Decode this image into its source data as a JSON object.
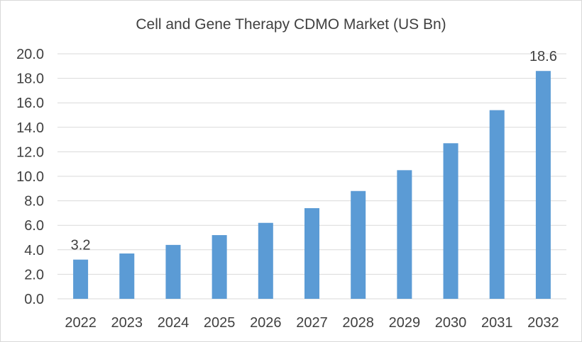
{
  "chart_data": {
    "type": "bar",
    "title": "Cell and Gene Therapy CDMO Market (US Bn)",
    "xlabel": "",
    "ylabel": "",
    "categories": [
      "2022",
      "2023",
      "2024",
      "2025",
      "2026",
      "2027",
      "2028",
      "2029",
      "2030",
      "2031",
      "2032"
    ],
    "values": [
      3.2,
      3.7,
      4.4,
      5.2,
      6.2,
      7.4,
      8.8,
      10.5,
      12.7,
      15.4,
      18.6
    ],
    "ylim": [
      0,
      20
    ],
    "yticks": [
      "0.0",
      "2.0",
      "4.0",
      "6.0",
      "8.0",
      "10.0",
      "12.0",
      "14.0",
      "16.0",
      "18.0",
      "20.0"
    ],
    "data_labels": [
      {
        "category": "2022",
        "text": "3.2"
      },
      {
        "category": "2032",
        "text": "18.6"
      }
    ],
    "grid": true,
    "legend": "none",
    "colors": {
      "bar": "#5b9bd5",
      "grid": "#d9d9d9",
      "text": "#404040"
    }
  }
}
